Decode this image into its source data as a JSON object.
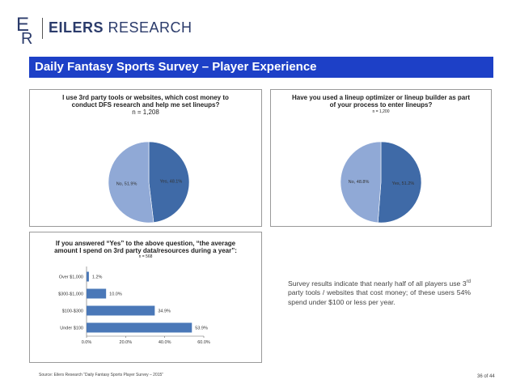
{
  "header": {
    "brand_bold": "EILERS",
    "brand_light": "RESEARCH",
    "colors": {
      "brand": "#2b3b6b",
      "accent": "#1d40c7"
    }
  },
  "title_bar": {
    "title": "Daily Fantasy Sports Survey – Player Experience"
  },
  "panel1": {
    "title_line1": "I use 3rd party tools or websites, which cost money to",
    "title_line2": "conduct DFS research and help me set lineups?",
    "n": "n = 1,208"
  },
  "panel2": {
    "title_line1": "Have you used a lineup optimizer or lineup builder as part",
    "title_line2": "of your process to enter lineups?",
    "n": "n = 1,200"
  },
  "panel3": {
    "title_line1": "If you answered “Yes” to the above question, “the average",
    "title_line2": "amount I spend on 3rd party data/resources during a year”:",
    "n": "n = 568"
  },
  "summary": {
    "text": "Survey results indicate that nearly half of all players use 3rd party tools / websites that cost money; of these users 54% spend under $100 or less per year."
  },
  "footer": {
    "source": "Source: Eilers Research “Daily Fantasy Sports Player Survey – 2015”",
    "page": "36 of 44"
  },
  "chart_data": [
    {
      "type": "pie",
      "title": "I use 3rd party tools or websites, which cost money to conduct DFS research and help me set lineups?",
      "slices": [
        {
          "label": "Yes",
          "value": 48.1,
          "display": "Yes, 48.1%",
          "color": "#3f6aa7"
        },
        {
          "label": "No",
          "value": 51.9,
          "display": "No, 51.9%",
          "color": "#90a9d6"
        }
      ]
    },
    {
      "type": "pie",
      "title": "Have you used a lineup optimizer or lineup builder as part of your process to enter lineups?",
      "slices": [
        {
          "label": "Yes",
          "value": 51.2,
          "display": "Yes, 51.2%",
          "color": "#3f6aa7"
        },
        {
          "label": "No",
          "value": 48.8,
          "display": "No, 48.8%",
          "color": "#90a9d6"
        }
      ]
    },
    {
      "type": "bar",
      "orientation": "horizontal",
      "title": "If you answered “Yes” to the above question, “the average amount I spend on 3rd party data/resources during a year”:",
      "categories": [
        "Over $1,000",
        "$300-$1,000",
        "$100-$300",
        "Under $100"
      ],
      "values": [
        1.2,
        10.0,
        34.9,
        53.9
      ],
      "value_labels": [
        "1.2%",
        "10.0%",
        "34.9%",
        "53.9%"
      ],
      "xlim": [
        0,
        60
      ],
      "xticks": [
        0,
        20,
        40,
        60
      ],
      "xtick_labels": [
        "0.0%",
        "20.0%",
        "40.0%",
        "60.0%"
      ],
      "color": "#4a78b8"
    }
  ]
}
